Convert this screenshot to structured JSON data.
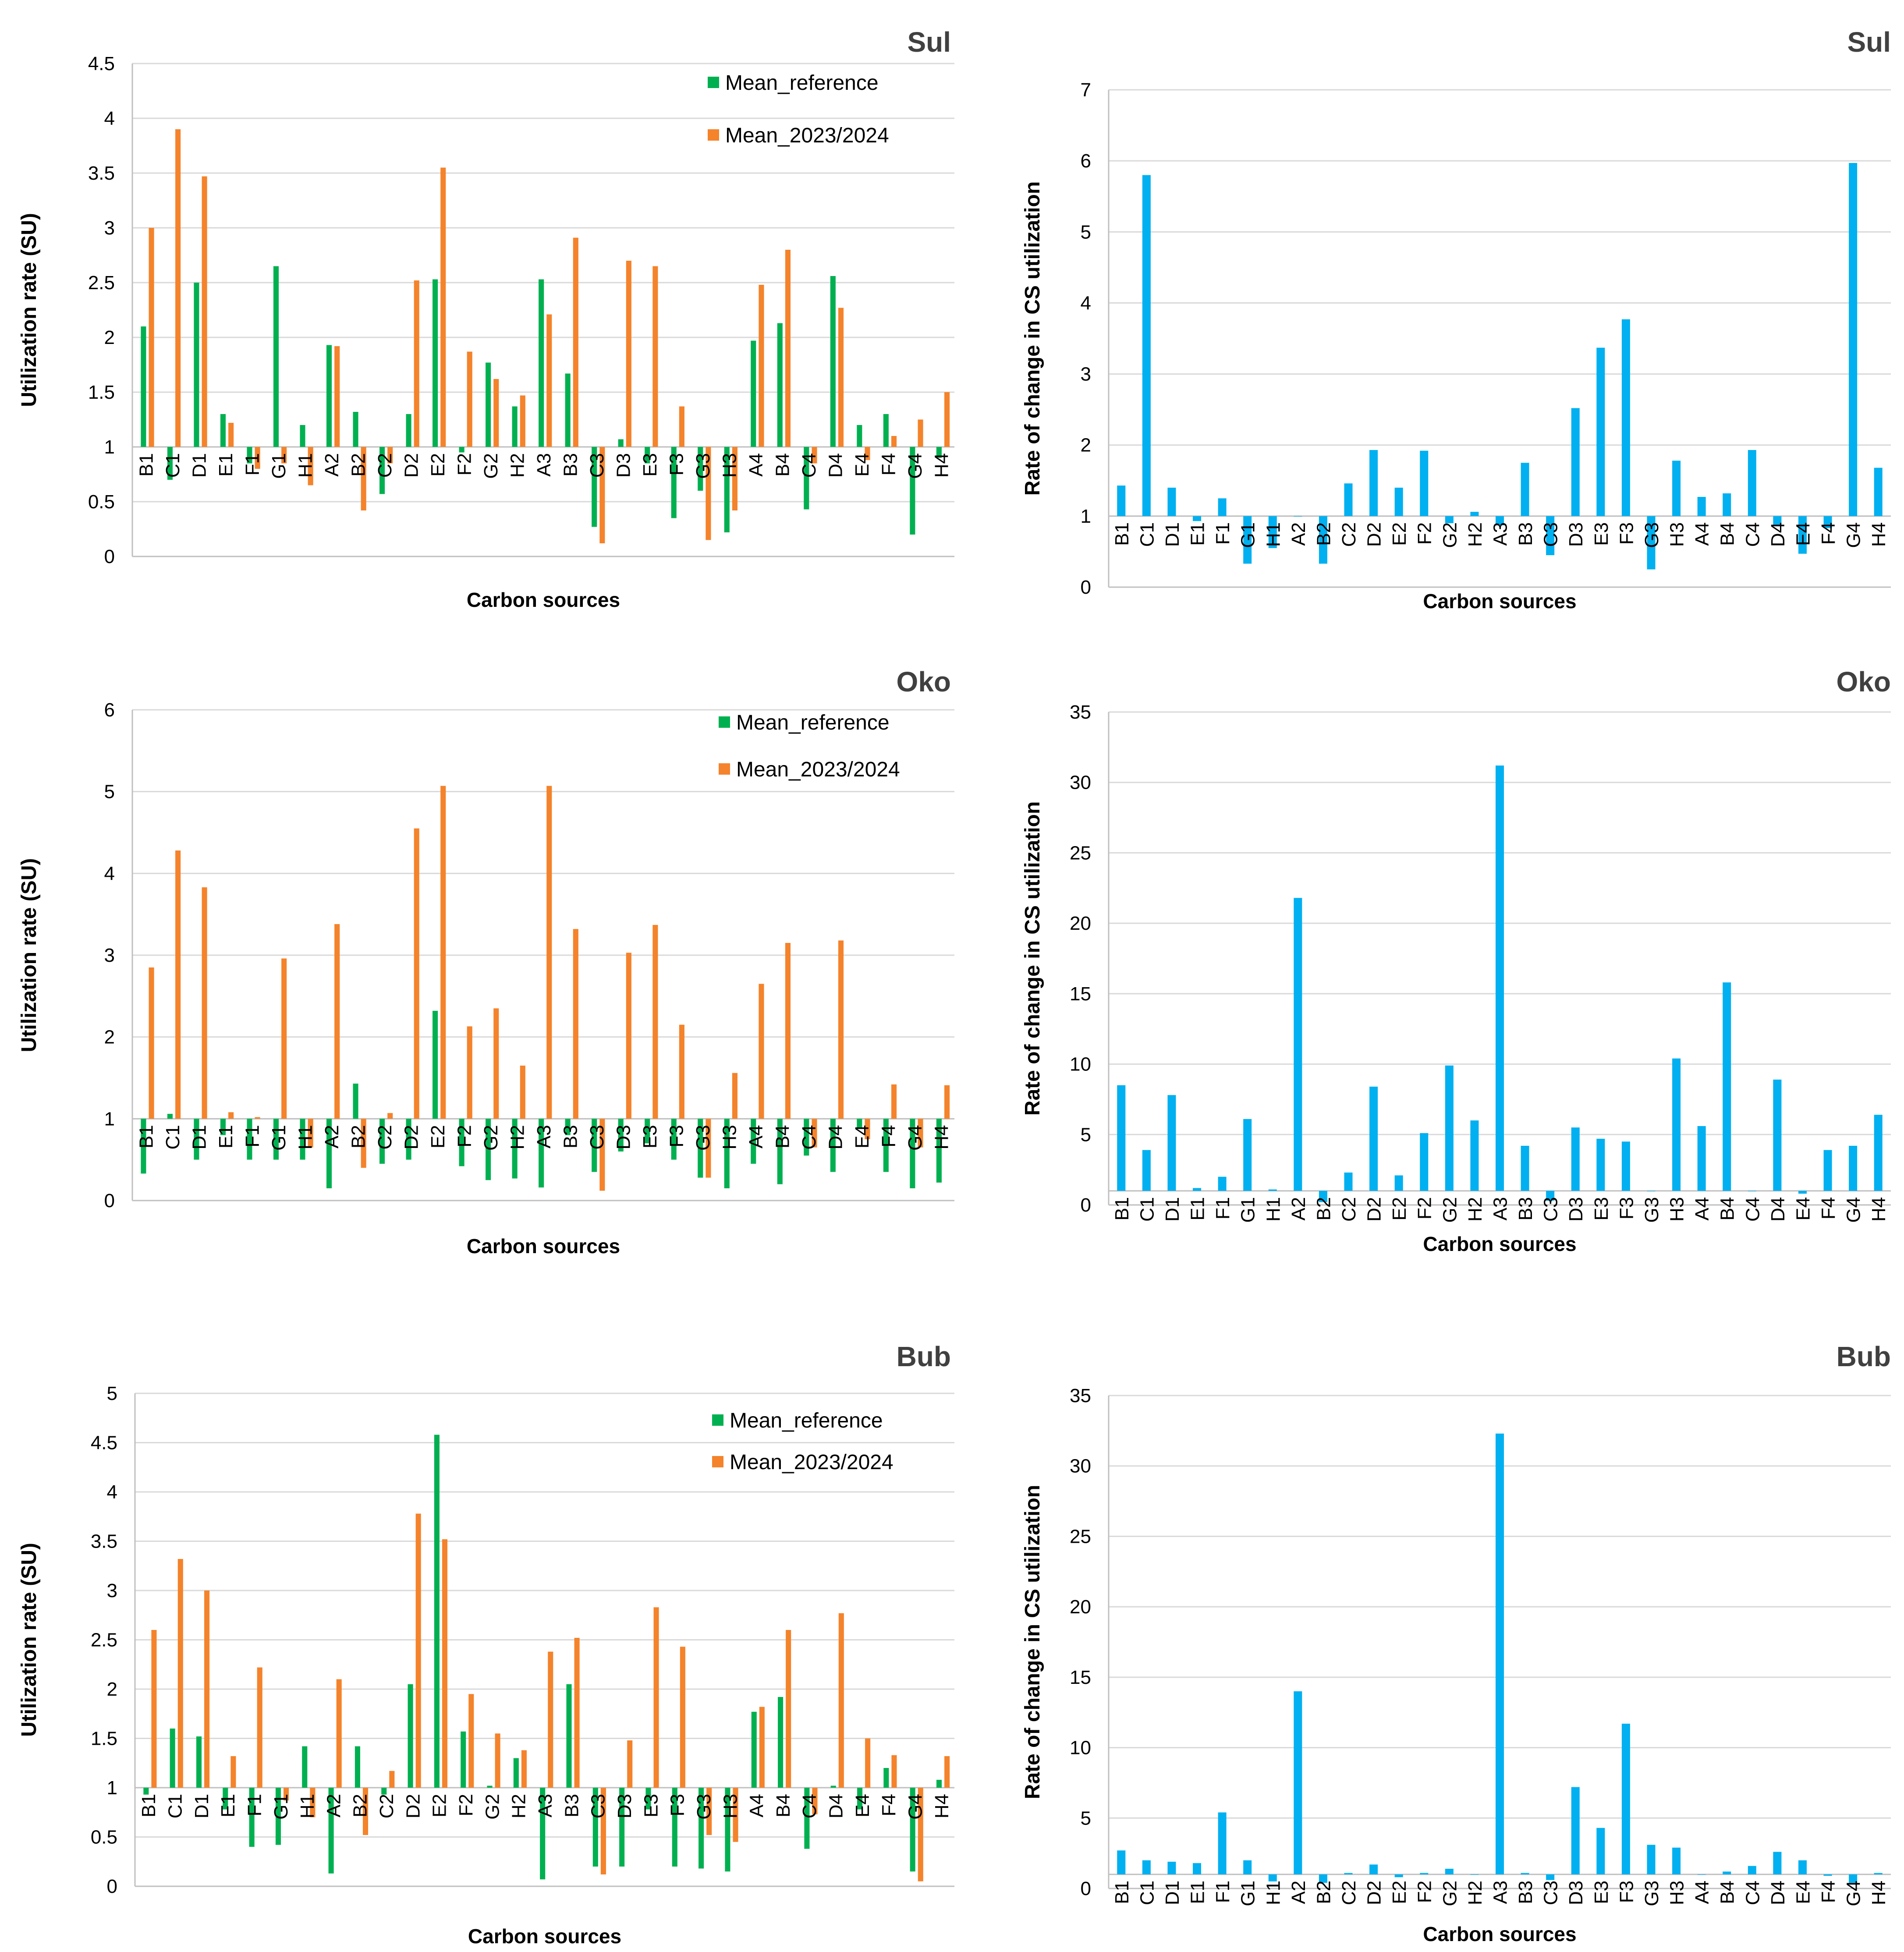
{
  "colors": {
    "reference": "#00b050",
    "current": "#f4832b",
    "rate": "#00b0f0"
  },
  "chart_data": [
    {
      "id": "sul-utilization",
      "type": "bar",
      "title": "Sul",
      "xlabel": "Carbon sources",
      "ylabel": "Utilization rate (SU)",
      "baseline": 1,
      "ylim": [
        0,
        4.5
      ],
      "yticks": [
        "0",
        "0.5",
        "1",
        "1.5",
        "2",
        "2.5",
        "3",
        "3.5",
        "4",
        "4.5"
      ],
      "categories": [
        "B1",
        "C1",
        "D1",
        "E1",
        "F1",
        "G1",
        "H1",
        "A2",
        "B2",
        "C2",
        "D2",
        "E2",
        "F2",
        "G2",
        "H2",
        "A3",
        "B3",
        "C3",
        "D3",
        "E3",
        "F3",
        "G3",
        "H3",
        "A4",
        "B4",
        "C4",
        "D4",
        "E4",
        "F4",
        "G4",
        "H4"
      ],
      "series": [
        {
          "name": "Mean_reference",
          "color": "reference",
          "values": [
            2.1,
            0.7,
            2.5,
            1.3,
            0.85,
            2.65,
            1.2,
            1.93,
            1.32,
            0.57,
            1.3,
            2.53,
            0.95,
            1.77,
            1.37,
            2.53,
            1.67,
            0.27,
            1.07,
            0.85,
            0.35,
            0.6,
            0.22,
            1.97,
            2.13,
            0.43,
            2.56,
            1.2,
            1.3,
            0.2,
            0.9
          ]
        },
        {
          "name": "Mean_2023/2024",
          "color": "current",
          "values": [
            3.0,
            3.9,
            3.47,
            1.22,
            0.8,
            0.85,
            0.65,
            1.92,
            0.42,
            0.85,
            2.52,
            3.55,
            1.87,
            1.62,
            1.47,
            2.21,
            2.91,
            0.12,
            2.7,
            2.65,
            1.37,
            0.15,
            0.42,
            2.48,
            2.8,
            0.85,
            2.27,
            0.88,
            1.1,
            1.25,
            1.5
          ]
        }
      ]
    },
    {
      "id": "sul-rate",
      "type": "bar",
      "title": "Sul",
      "xlabel": "Carbon sources",
      "ylabel": "Rate of change in CS utilization",
      "baseline": 1,
      "ylim": [
        0,
        7
      ],
      "yticks": [
        "0",
        "1",
        "2",
        "3",
        "4",
        "5",
        "6",
        "7"
      ],
      "categories": [
        "B1",
        "C1",
        "D1",
        "E1",
        "F1",
        "G1",
        "H1",
        "A2",
        "B2",
        "C2",
        "D2",
        "E2",
        "F2",
        "G2",
        "H2",
        "A3",
        "B3",
        "C3",
        "D3",
        "E3",
        "F3",
        "G3",
        "H3",
        "A4",
        "B4",
        "C4",
        "D4",
        "E4",
        "F4",
        "G4",
        "H4"
      ],
      "series": [
        {
          "name": "Rate of change",
          "color": "rate",
          "values": [
            1.43,
            5.8,
            1.4,
            0.93,
            1.25,
            0.33,
            0.55,
            1.0,
            0.33,
            1.46,
            1.93,
            1.4,
            1.92,
            0.9,
            1.06,
            0.87,
            1.75,
            0.45,
            2.52,
            3.37,
            3.77,
            0.25,
            1.78,
            1.27,
            1.32,
            1.93,
            0.87,
            0.47,
            0.83,
            5.97,
            1.68
          ]
        }
      ]
    },
    {
      "id": "oko-utilization",
      "type": "bar",
      "title": "Oko",
      "xlabel": "Carbon sources",
      "ylabel": "Utilization rate (SU)",
      "baseline": 1,
      "ylim": [
        0,
        6
      ],
      "yticks": [
        "0",
        "1",
        "2",
        "3",
        "4",
        "5",
        "6"
      ],
      "categories": [
        "B1",
        "C1",
        "D1",
        "E1",
        "F1",
        "G1",
        "H1",
        "A2",
        "B2",
        "C2",
        "D2",
        "E2",
        "F2",
        "G2",
        "H2",
        "A3",
        "B3",
        "C3",
        "D3",
        "E3",
        "F3",
        "G3",
        "H3",
        "A4",
        "B4",
        "C4",
        "D4",
        "E4",
        "F4",
        "G4",
        "H4"
      ],
      "series": [
        {
          "name": "Mean_reference",
          "color": "reference",
          "values": [
            0.33,
            1.06,
            0.5,
            0.8,
            0.5,
            0.5,
            0.5,
            0.15,
            1.43,
            0.45,
            0.5,
            2.32,
            0.42,
            0.25,
            0.27,
            0.16,
            0.8,
            0.35,
            0.6,
            0.7,
            0.5,
            0.28,
            0.15,
            0.45,
            0.2,
            0.55,
            0.35,
            0.88,
            0.35,
            0.15,
            0.22
          ]
        },
        {
          "name": "Mean_2023/2024",
          "color": "current",
          "values": [
            2.85,
            4.28,
            3.83,
            1.08,
            1.02,
            2.96,
            0.65,
            3.38,
            0.4,
            1.07,
            4.55,
            5.07,
            2.13,
            2.35,
            1.65,
            5.07,
            3.32,
            0.12,
            3.03,
            3.37,
            2.15,
            0.28,
            1.56,
            2.65,
            3.15,
            0.65,
            3.18,
            0.75,
            1.42,
            0.65,
            1.41
          ]
        }
      ]
    },
    {
      "id": "oko-rate",
      "type": "bar",
      "title": "Oko",
      "xlabel": "Carbon sources",
      "ylabel": "Rate of change in CS utilization",
      "baseline": 1,
      "ylim": [
        0,
        35
      ],
      "yticks": [
        "0",
        "5",
        "10",
        "15",
        "20",
        "25",
        "30",
        "35"
      ],
      "categories": [
        "B1",
        "C1",
        "D1",
        "E1",
        "F1",
        "G1",
        "H1",
        "A2",
        "B2",
        "C2",
        "D2",
        "E2",
        "F2",
        "G2",
        "H2",
        "A3",
        "B3",
        "C3",
        "D3",
        "E3",
        "F3",
        "G3",
        "H3",
        "A4",
        "B4",
        "C4",
        "D4",
        "E4",
        "F4",
        "G4",
        "H4"
      ],
      "series": [
        {
          "name": "Rate of change",
          "color": "rate",
          "values": [
            8.5,
            3.9,
            7.8,
            1.2,
            2.0,
            6.1,
            1.1,
            21.8,
            0.2,
            2.3,
            8.4,
            2.1,
            5.1,
            9.9,
            6.0,
            31.2,
            4.2,
            0.3,
            5.5,
            4.7,
            4.5,
            1.0,
            10.4,
            5.6,
            15.8,
            1.0,
            8.9,
            0.8,
            3.9,
            4.2,
            6.4
          ]
        }
      ]
    },
    {
      "id": "bub-utilization",
      "type": "bar",
      "title": "Bub",
      "xlabel": "Carbon sources",
      "ylabel": "Utilization rate (SU)",
      "baseline": 1,
      "ylim": [
        0,
        5
      ],
      "yticks": [
        "0",
        "0.5",
        "1",
        "1.5",
        "2",
        "2.5",
        "3",
        "3.5",
        "4",
        "4.5",
        "5"
      ],
      "categories": [
        "B1",
        "C1",
        "D1",
        "E1",
        "F1",
        "G1",
        "H1",
        "A2",
        "B2",
        "C2",
        "D2",
        "E2",
        "F2",
        "G2",
        "H2",
        "A3",
        "B3",
        "C3",
        "D3",
        "E3",
        "F3",
        "G3",
        "H3",
        "A4",
        "B4",
        "C4",
        "D4",
        "E4",
        "F4",
        "G4",
        "H4"
      ],
      "series": [
        {
          "name": "Mean_reference",
          "color": "reference",
          "values": [
            0.93,
            1.6,
            1.52,
            0.78,
            0.4,
            0.42,
            1.42,
            0.13,
            1.42,
            0.93,
            2.05,
            4.58,
            1.57,
            1.02,
            1.3,
            0.07,
            2.05,
            0.2,
            0.2,
            0.78,
            0.2,
            0.18,
            0.15,
            1.77,
            1.92,
            0.38,
            1.02,
            0.78,
            1.2,
            0.15,
            1.08
          ]
        },
        {
          "name": "Mean_2023/2024",
          "color": "current",
          "values": [
            2.6,
            3.32,
            3.0,
            1.32,
            2.22,
            0.87,
            0.7,
            2.1,
            0.52,
            1.17,
            3.78,
            3.52,
            1.95,
            1.55,
            1.38,
            2.38,
            2.52,
            0.12,
            1.48,
            2.83,
            2.43,
            0.52,
            0.45,
            1.82,
            2.6,
            0.73,
            2.77,
            1.5,
            1.33,
            0.05,
            1.32
          ]
        }
      ]
    },
    {
      "id": "bub-rate",
      "type": "bar",
      "title": "Bub",
      "xlabel": "Carbon sources",
      "ylabel": "Rate of change in CS utilization",
      "baseline": 1,
      "ylim": [
        0,
        35
      ],
      "yticks": [
        "0",
        "5",
        "10",
        "15",
        "20",
        "25",
        "30",
        "35"
      ],
      "categories": [
        "B1",
        "C1",
        "D1",
        "E1",
        "F1",
        "G1",
        "H1",
        "A2",
        "B2",
        "C2",
        "D2",
        "E2",
        "F2",
        "G2",
        "H2",
        "A3",
        "B3",
        "C3",
        "D3",
        "E3",
        "F3",
        "G3",
        "H3",
        "A4",
        "B4",
        "C4",
        "D4",
        "E4",
        "F4",
        "G4",
        "H4"
      ],
      "series": [
        {
          "name": "Rate of change",
          "color": "rate",
          "values": [
            2.7,
            2.0,
            1.9,
            1.8,
            5.4,
            2.0,
            0.5,
            14.0,
            0.4,
            1.1,
            1.7,
            0.8,
            1.1,
            1.4,
            1.0,
            32.3,
            1.1,
            0.6,
            7.2,
            4.3,
            11.7,
            3.1,
            2.9,
            1.0,
            1.2,
            1.6,
            2.6,
            2.0,
            0.9,
            0.4,
            1.1
          ]
        }
      ]
    }
  ]
}
